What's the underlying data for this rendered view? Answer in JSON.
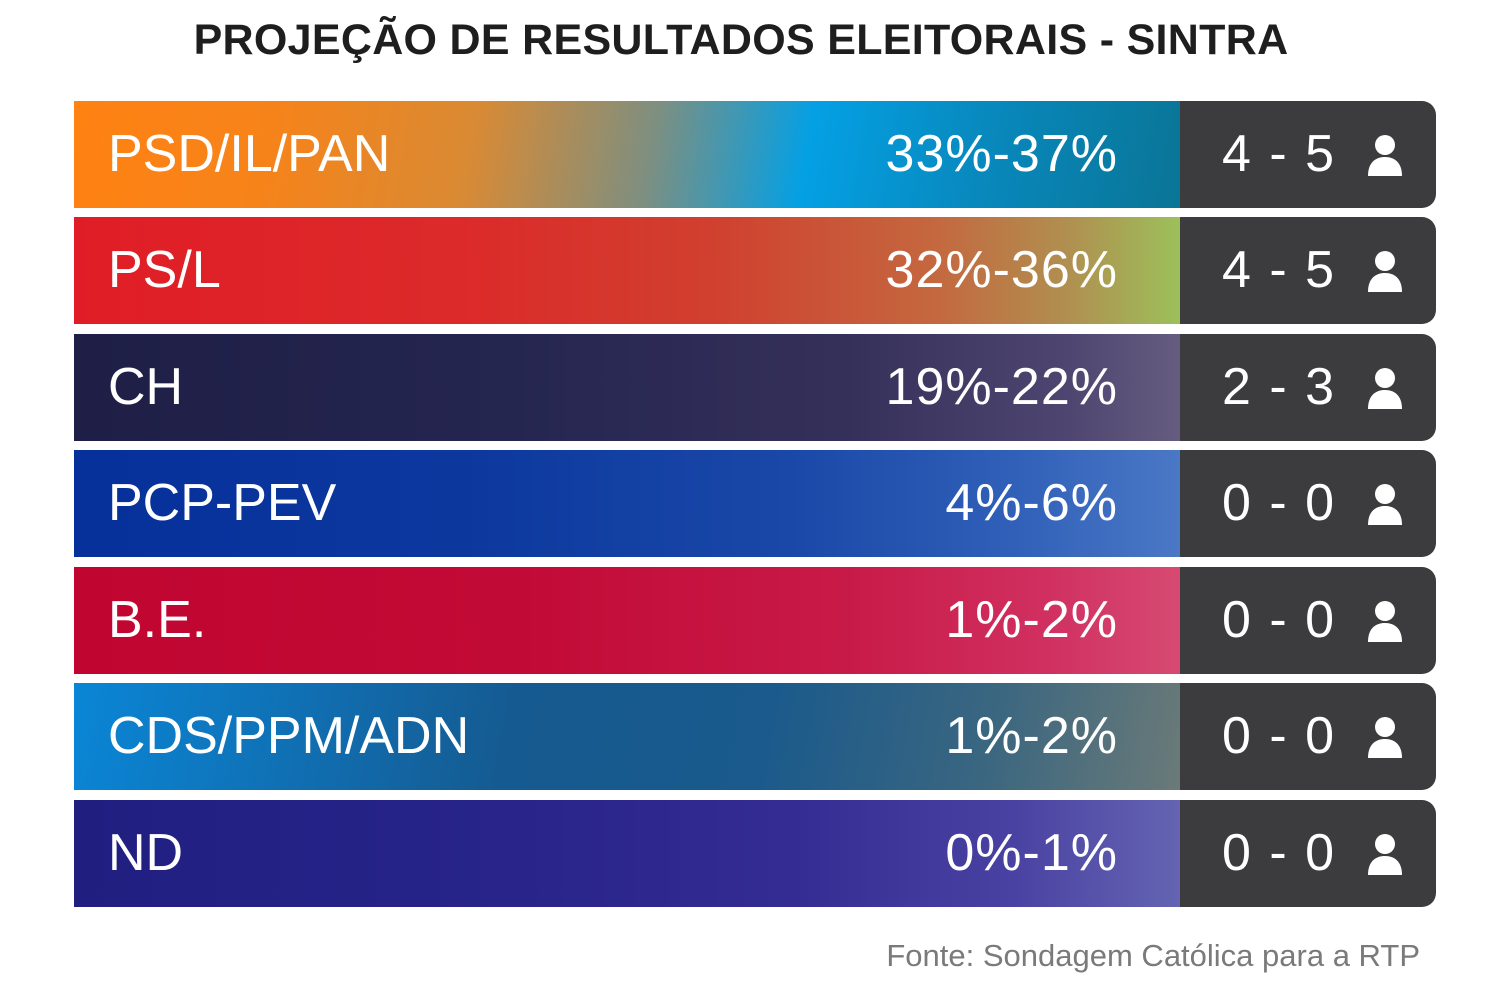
{
  "title": "PROJEÇÃO DE RESULTADOS ELEITORAIS - SINTRA",
  "rows": [
    {
      "party": "PSD/IL/PAN",
      "range": "33%-37%",
      "seats": "4 - 5",
      "icon": "person-icon"
    },
    {
      "party": "PS/L",
      "range": "32%-36%",
      "seats": "4 - 5",
      "icon": "person-icon"
    },
    {
      "party": "CH",
      "range": "19%-22%",
      "seats": "2 - 3",
      "icon": "person-icon"
    },
    {
      "party": "PCP-PEV",
      "range": "4%-6%",
      "seats": "0 - 0",
      "icon": "person-icon"
    },
    {
      "party": "B.E.",
      "range": "1%-2%",
      "seats": "0 - 0",
      "icon": "person-icon"
    },
    {
      "party": "CDS/PPM/ADN",
      "range": "1%-2%",
      "seats": "0 - 0",
      "icon": "person-icon"
    },
    {
      "party": "ND",
      "range": "0%-1%",
      "seats": "0 - 0",
      "icon": "person-icon"
    }
  ],
  "colors": {
    "seat_box": "#3c3c3e",
    "source_text": "#7a7a7a"
  },
  "source": "Fonte: Sondagem Católica para a RTP"
}
